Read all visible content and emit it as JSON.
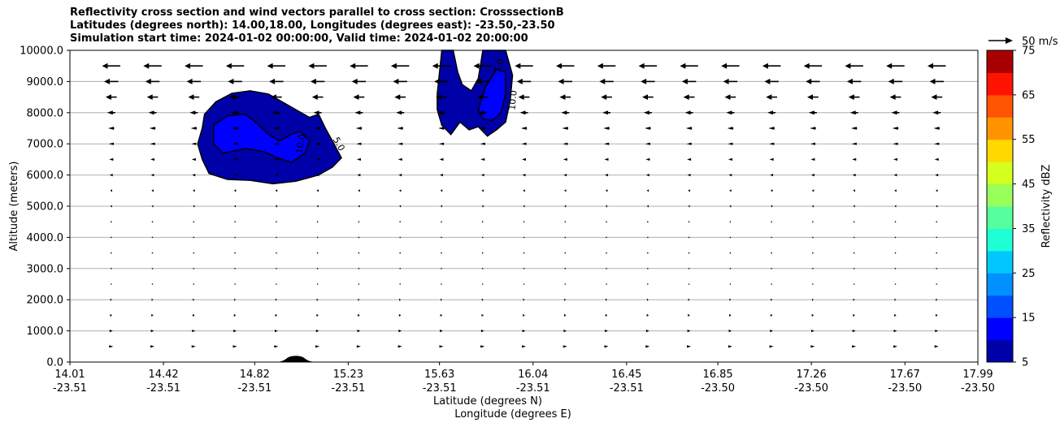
{
  "chart_data": {
    "type": "contourf",
    "title_lines": [
      "Reflectivity cross section and wind vectors parallel to cross section: CrosssectionB",
      "Latitudes (degrees north): 14.00,18.00, Longitudes (degrees east): -23.50,-23.50",
      "Simulation start time: 2024-01-02 00:00:00, Valid time: 2024-01-02 20:00:00"
    ],
    "ylabel": "Altitude (meters)",
    "xlabel_lat": "Latitude (degrees N)",
    "xlabel_lon": "Longitude (degrees E)",
    "ylim": [
      0,
      10000
    ],
    "y_ticks": [
      "0.0",
      "1000.0",
      "2000.0",
      "3000.0",
      "4000.0",
      "5000.0",
      "6000.0",
      "7000.0",
      "8000.0",
      "9000.0",
      "10000.0"
    ],
    "x_ticks": [
      {
        "lat": "14.01",
        "lon": "-23.51"
      },
      {
        "lat": "14.42",
        "lon": "-23.51"
      },
      {
        "lat": "14.82",
        "lon": "-23.51"
      },
      {
        "lat": "15.23",
        "lon": "-23.51"
      },
      {
        "lat": "15.63",
        "lon": "-23.51"
      },
      {
        "lat": "16.04",
        "lon": "-23.51"
      },
      {
        "lat": "16.45",
        "lon": "-23.51"
      },
      {
        "lat": "16.85",
        "lon": "-23.50"
      },
      {
        "lat": "17.26",
        "lon": "-23.50"
      },
      {
        "lat": "17.67",
        "lon": "-23.50"
      },
      {
        "lat": "17.99",
        "lon": "-23.50"
      }
    ],
    "grid": "horizontal",
    "colorbar": {
      "label": "Reflectivity dBZ",
      "levels": [
        5,
        10,
        15,
        20,
        25,
        30,
        35,
        40,
        45,
        50,
        55,
        60,
        65,
        70,
        75
      ],
      "tick_labels": [
        "5",
        "15",
        "25",
        "35",
        "45",
        "55",
        "65",
        "75"
      ],
      "colors": [
        "#0000a8",
        "#0000ff",
        "#0050ff",
        "#0090ff",
        "#00c8ff",
        "#1effd5",
        "#55ff9e",
        "#99ff5a",
        "#d5ff1e",
        "#ffd800",
        "#ff9400",
        "#ff5500",
        "#ff1200",
        "#a80000"
      ]
    },
    "reflectivity_cells": [
      {
        "name": "cell-west",
        "lat_range": [
          14.58,
          15.13
        ],
        "alt_range": [
          5700,
          8700
        ],
        "max_dbz_band": [
          10,
          15
        ],
        "contour_labels": [
          "5.0",
          "10.0"
        ]
      },
      {
        "name": "cell-east",
        "lat_range": [
          15.62,
          15.95
        ],
        "alt_range": [
          7200,
          10000
        ],
        "max_dbz_band": [
          10,
          15
        ],
        "contour_labels": [
          "5.0",
          "10.0"
        ]
      }
    ],
    "terrain": {
      "lat_range": [
        14.9,
        15.1
      ],
      "max_alt": 200
    },
    "wind_reference": {
      "label": "50 m/s"
    },
    "wind_levels": [
      {
        "alt": 9500,
        "u": -18
      },
      {
        "alt": 9000,
        "u": -14
      },
      {
        "alt": 8500,
        "u": -11
      },
      {
        "alt": 8000,
        "u": -8
      },
      {
        "alt": 7500,
        "u": -6
      },
      {
        "alt": 7000,
        "u": -5
      },
      {
        "alt": 6500,
        "u": -4
      },
      {
        "alt": 6000,
        "u": -3
      },
      {
        "alt": 5500,
        "u": -2
      },
      {
        "alt": 5000,
        "u": -1.5
      },
      {
        "alt": 4500,
        "u": -1
      },
      {
        "alt": 4000,
        "u": 0.5
      },
      {
        "alt": 3500,
        "u": 0.5
      },
      {
        "alt": 3000,
        "u": 0.5
      },
      {
        "alt": 2500,
        "u": 1
      },
      {
        "alt": 2000,
        "u": 1.5
      },
      {
        "alt": 1500,
        "u": 2
      },
      {
        "alt": 1000,
        "u": 3
      },
      {
        "alt": 500,
        "u": 4
      }
    ]
  }
}
